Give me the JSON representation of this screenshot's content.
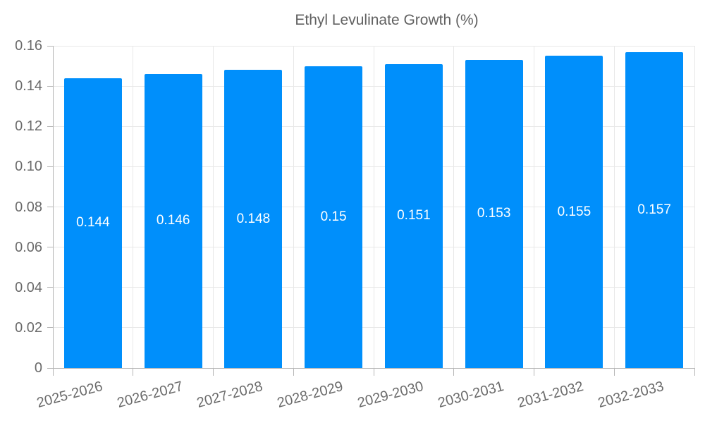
{
  "chart_data": {
    "type": "bar",
    "title": "",
    "xlabel": "",
    "ylabel": "",
    "categories": [
      "2025-2026",
      "2026-2027",
      "2027-2028",
      "2028-2029",
      "2029-2030",
      "2030-2031",
      "2031-2032",
      "2032-2033"
    ],
    "series": [
      {
        "name": "Ethyl Levulinate Growth (%)",
        "values": [
          0.144,
          0.146,
          0.148,
          0.15,
          0.151,
          0.153,
          0.155,
          0.157
        ],
        "data_labels": [
          "0.144",
          "0.146",
          "0.148",
          "0.15",
          "0.151",
          "0.153",
          "0.155",
          "0.157"
        ]
      }
    ],
    "ylim": [
      0,
      0.16
    ],
    "ytick_labels": [
      "0",
      "0.02",
      "0.04",
      "0.06",
      "0.08",
      "0.10",
      "0.12",
      "0.14",
      "0.16"
    ],
    "ytick_values": [
      0,
      0.02,
      0.04,
      0.06,
      0.08,
      0.1,
      0.12,
      0.14,
      0.16
    ],
    "grid": true,
    "legend_position": "top",
    "colors": {
      "bar": "#008FFB",
      "grid_line": "#e8e8e8",
      "axis_line": "#b6b6b6",
      "axis_text": "#6b6b6b",
      "legend_text": "#616161",
      "value_label": "#ffffff"
    }
  }
}
